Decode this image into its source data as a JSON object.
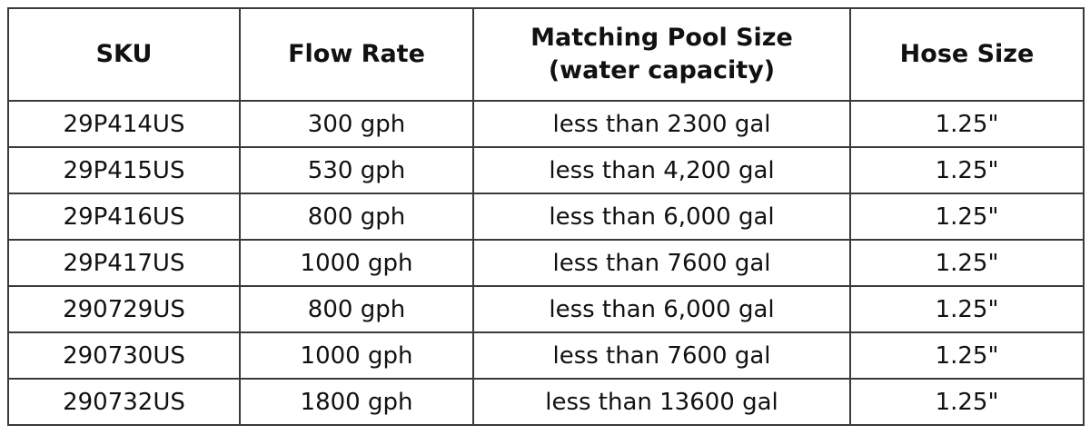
{
  "table": {
    "header": [
      "SKU",
      "Flow Rate",
      [
        "Matching Pool Size",
        "(water capacity)"
      ],
      "Hose Size"
    ],
    "rows": [
      [
        "29P414US",
        "300 gph",
        "less than 2300 gal",
        "1.25\""
      ],
      [
        "29P415US",
        "530 gph",
        "less than 4,200 gal",
        "1.25\""
      ],
      [
        "29P416US",
        "800 gph",
        "less than 6,000 gal",
        "1.25\""
      ],
      [
        "29P417US",
        "1000 gph",
        "less than 7600 gal",
        "1.25\""
      ],
      [
        "290729US",
        "800 gph",
        "less than 6,000 gal",
        "1.25\""
      ],
      [
        "290730US",
        "1000 gph",
        "less than 7600 gal",
        "1.25\""
      ],
      [
        "290732US",
        "1800 gph",
        "less than 13600 gal",
        "1.25\""
      ]
    ]
  }
}
